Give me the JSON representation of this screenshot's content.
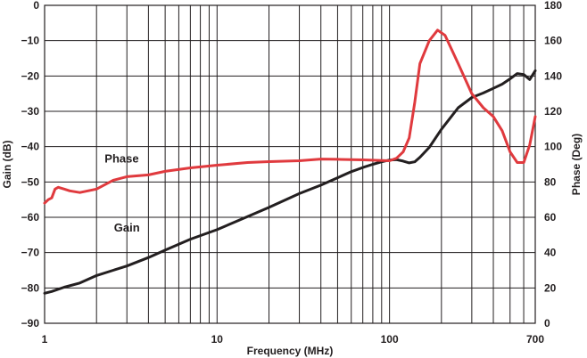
{
  "chart_data": {
    "type": "line",
    "xlabel": "Frequency (MHz)",
    "ylabel_left": "Gain (dB)",
    "ylabel_right": "Phase (Deg)",
    "x_scale": "log",
    "xlim": [
      1,
      700
    ],
    "ylim_left": [
      -90,
      0
    ],
    "ylim_right": [
      0,
      180
    ],
    "x_ticks": [
      1,
      10,
      100,
      700
    ],
    "x_tick_labels": [
      "1",
      "10",
      "100",
      "700"
    ],
    "y_left_ticks": [
      0,
      -10,
      -20,
      -30,
      -40,
      -50,
      -60,
      -70,
      -80,
      -90
    ],
    "y_left_tick_labels": [
      "0",
      "−10",
      "−20",
      "−30",
      "−40",
      "−50",
      "−60",
      "−70",
      "−80",
      "−90"
    ],
    "y_right_ticks": [
      180,
      160,
      140,
      120,
      100,
      80,
      60,
      40,
      20,
      0
    ],
    "y_right_tick_labels": [
      "180",
      "160",
      "140",
      "120",
      "100",
      "80",
      "60",
      "40",
      "20",
      "0"
    ],
    "grid": true,
    "series": [
      {
        "name": "Gain",
        "axis": "left",
        "color": "#231f20",
        "x": [
          1,
          1.1,
          1.3,
          1.6,
          2,
          2.5,
          3,
          4,
          5,
          7,
          10,
          15,
          20,
          30,
          40,
          50,
          60,
          70,
          80,
          90,
          100,
          110,
          120,
          130,
          140,
          150,
          170,
          200,
          250,
          300,
          350,
          400,
          450,
          500,
          550,
          600,
          650,
          700
        ],
        "values": [
          -81.5,
          -81,
          -79.8,
          -78.6,
          -76.5,
          -75,
          -73.8,
          -71.4,
          -69.3,
          -66.2,
          -63.5,
          -59.8,
          -57.2,
          -53.3,
          -50.9,
          -48.8,
          -47.1,
          -45.9,
          -45,
          -44.3,
          -43.8,
          -43.7,
          -44.1,
          -44.6,
          -44.3,
          -43,
          -40.2,
          -35.1,
          -29,
          -26.1,
          -24.8,
          -23.5,
          -22.3,
          -20.8,
          -19.3,
          -19.6,
          -21,
          -18.5
        ]
      },
      {
        "name": "Phase",
        "axis": "right",
        "color": "#e03a3e",
        "x": [
          1,
          1.05,
          1.1,
          1.15,
          1.2,
          1.3,
          1.4,
          1.6,
          2,
          2.5,
          3,
          4,
          5,
          7,
          10,
          15,
          20,
          30,
          40,
          50,
          70,
          100,
          110,
          120,
          130,
          140,
          150,
          170,
          190,
          210,
          250,
          300,
          350,
          400,
          450,
          500,
          550,
          600,
          650,
          700
        ],
        "values": [
          68,
          70,
          71,
          76,
          77,
          76,
          75,
          74,
          76,
          81,
          83,
          84,
          86,
          88,
          89.5,
          91,
          91.5,
          92,
          93,
          92.8,
          92.5,
          92,
          93.5,
          97,
          105,
          125,
          147,
          160,
          166,
          163,
          147,
          130,
          122,
          117,
          109,
          97,
          91,
          91,
          101,
          117
        ]
      }
    ]
  }
}
